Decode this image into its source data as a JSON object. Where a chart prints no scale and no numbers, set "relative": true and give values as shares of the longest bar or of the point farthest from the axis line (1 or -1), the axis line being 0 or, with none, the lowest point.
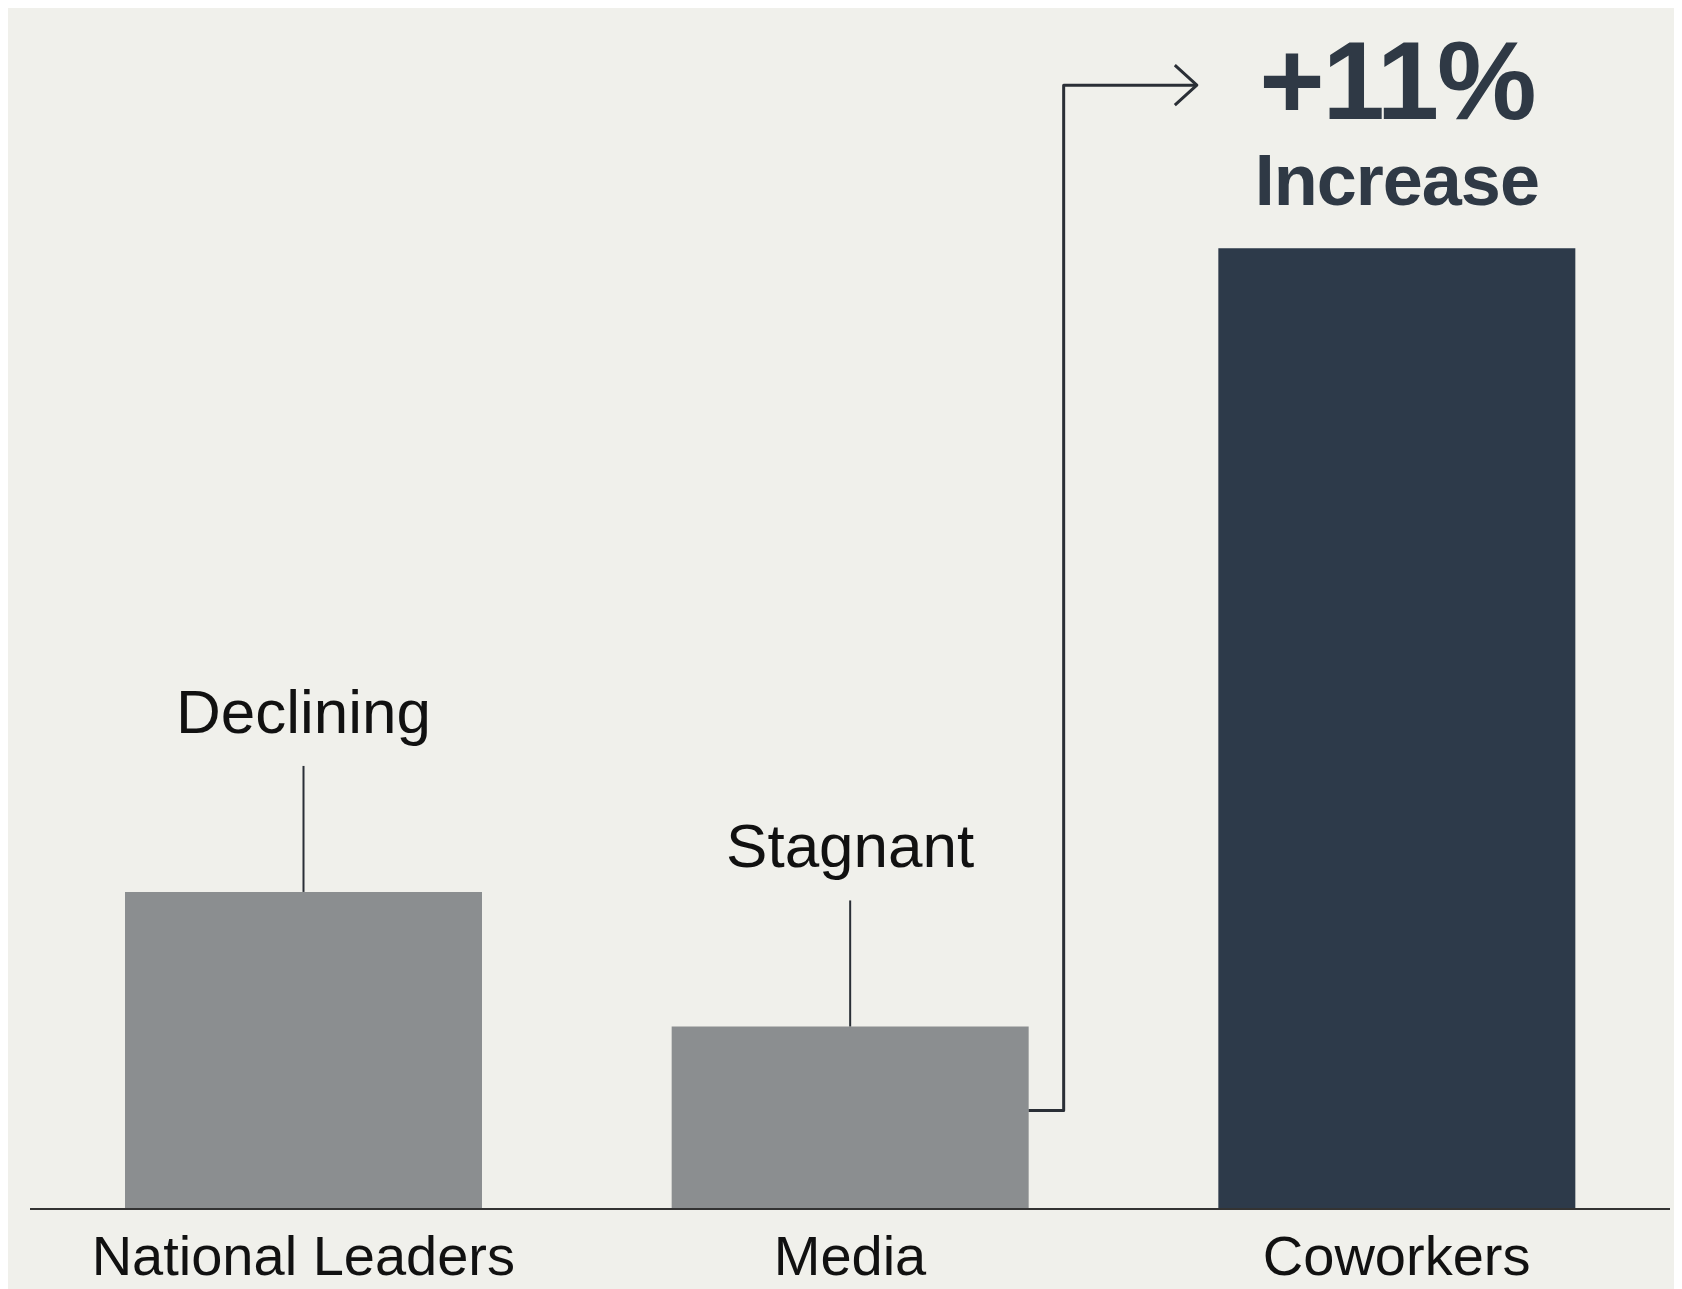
{
  "chart_data": {
    "type": "bar",
    "relative": true,
    "categories": [
      "National Leaders",
      "Media",
      "Coworkers"
    ],
    "values": [
      0.33,
      0.19,
      1
    ],
    "colors": [
      "#8b8e90",
      "#8b8e90",
      "#2d3a4a"
    ],
    "annotations": [
      {
        "text": "Declining",
        "x": "National Leaders",
        "y": 0.33
      },
      {
        "text": "Stagnant",
        "x": "Media",
        "y": 0.19
      },
      {
        "text": "+11%",
        "x": "Coworkers",
        "y": 1
      },
      {
        "text": "Increase",
        "x": "Coworkers",
        "y": 1
      }
    ]
  }
}
